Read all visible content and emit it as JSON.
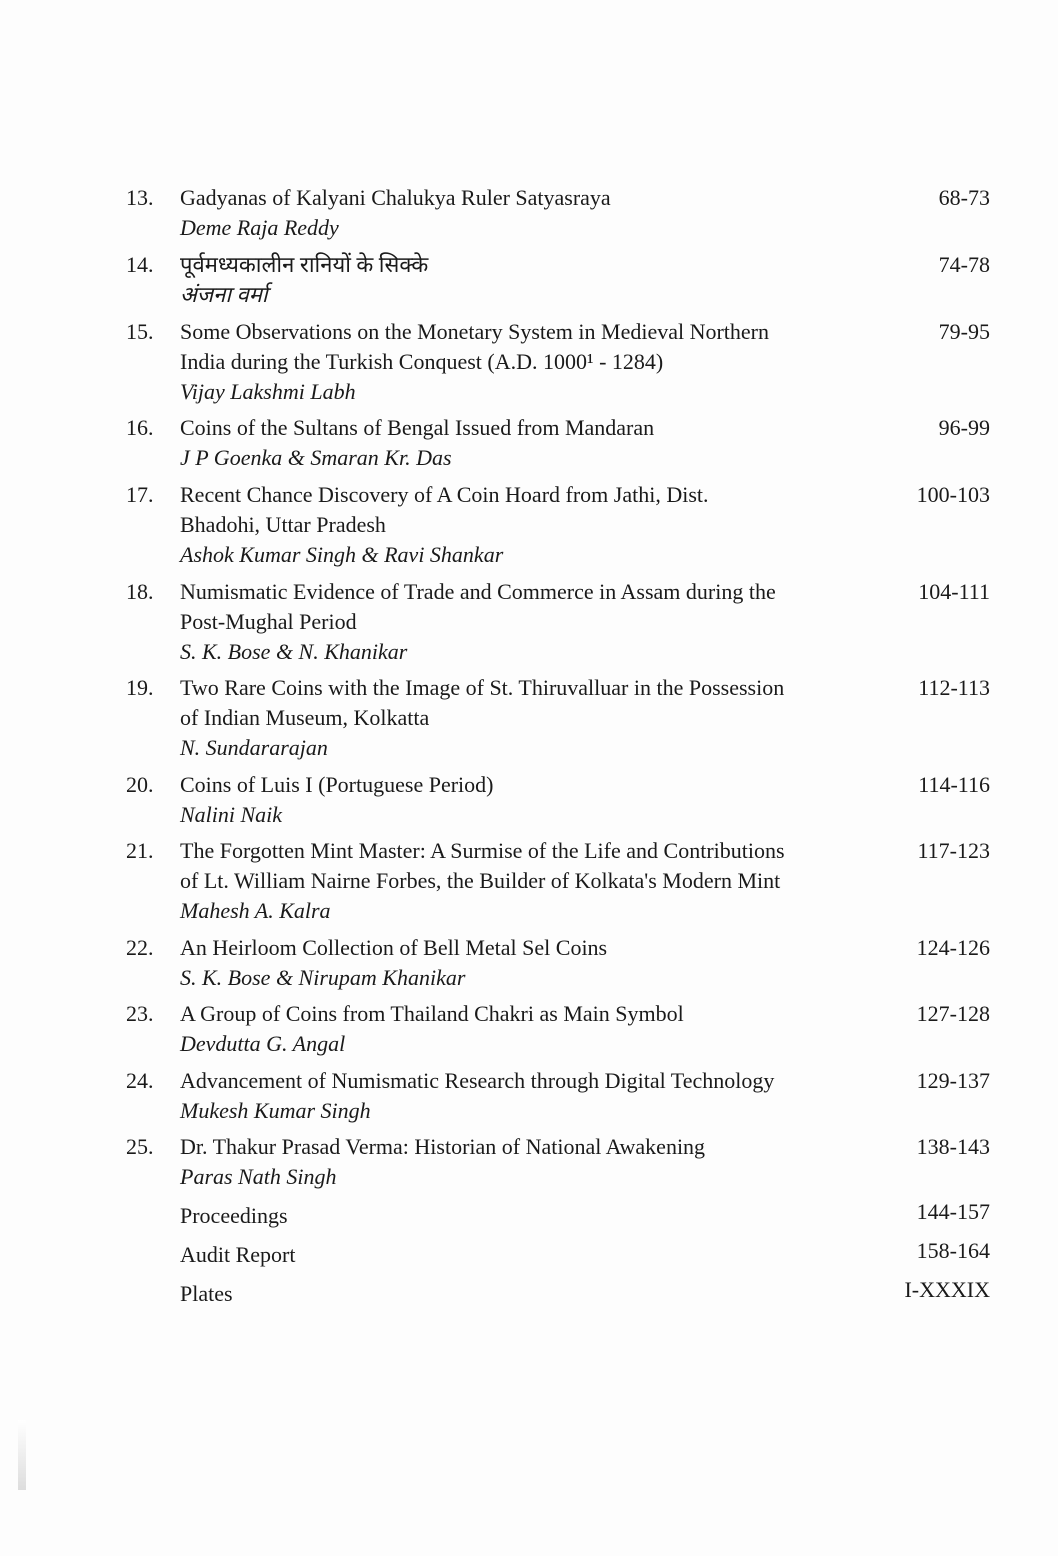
{
  "entries": [
    {
      "number": "13.",
      "title_lines": [
        "Gadyanas of Kalyani Chalukya Ruler Satyasraya"
      ],
      "author": "Deme Raja Reddy",
      "pages": "68-73"
    },
    {
      "number": "14.",
      "title_lines": [
        "पूर्वमध्यकालीन रानियों के सिक्के"
      ],
      "author": "अंजना वर्मा",
      "pages": "74-78"
    },
    {
      "number": "15.",
      "title_lines": [
        "Some Observations on the Monetary System in Medieval Northern",
        "India during the Turkish Conquest (A.D. 1000¹ - 1284)"
      ],
      "author": "Vijay Lakshmi Labh",
      "pages": "79-95"
    },
    {
      "number": "16.",
      "title_lines": [
        "Coins of the Sultans of Bengal Issued from Mandaran"
      ],
      "author": "J P Goenka & Smaran Kr. Das",
      "pages": "96-99"
    },
    {
      "number": "17.",
      "title_lines": [
        "Recent Chance Discovery of A Coin Hoard from Jathi, Dist.",
        "Bhadohi, Uttar Pradesh"
      ],
      "author": "Ashok Kumar Singh & Ravi Shankar",
      "pages": "100-103"
    },
    {
      "number": "18.",
      "title_lines": [
        "Numismatic Evidence of Trade and Commerce in Assam during the",
        "Post-Mughal Period"
      ],
      "author": "S. K. Bose & N. Khanikar",
      "pages": "104-111"
    },
    {
      "number": "19.",
      "title_lines": [
        "Two Rare Coins with the Image of St. Thiruvalluar in the Possession",
        "of Indian Museum, Kolkatta"
      ],
      "author": "N. Sundararajan",
      "pages": "112-113"
    },
    {
      "number": "20.",
      "title_lines": [
        "Coins of Luis I (Portuguese Period)"
      ],
      "author": "Nalini Naik",
      "pages": "114-116"
    },
    {
      "number": "21.",
      "title_lines": [
        "The Forgotten Mint Master: A Surmise of the Life and Contributions",
        "of Lt. William Nairne Forbes, the Builder of Kolkata's Modern Mint"
      ],
      "author": "Mahesh A. Kalra",
      "pages": "117-123"
    },
    {
      "number": "22.",
      "title_lines": [
        "An Heirloom Collection of Bell Metal Sel Coins"
      ],
      "author": "S. K. Bose & Nirupam Khanikar",
      "pages": "124-126"
    },
    {
      "number": "23.",
      "title_lines": [
        "A Group of Coins from Thailand Chakri as Main Symbol"
      ],
      "author": "Devdutta G. Angal",
      "pages": "127-128"
    },
    {
      "number": "24.",
      "title_lines": [
        "Advancement of Numismatic Research through Digital Technology"
      ],
      "author": "Mukesh Kumar Singh",
      "pages": "129-137"
    },
    {
      "number": "25.",
      "title_lines": [
        "Dr. Thakur Prasad Verma: Historian of National Awakening"
      ],
      "author": "Paras Nath Singh",
      "pages": "138-143"
    },
    {
      "number": "",
      "title_lines": [
        "Proceedings"
      ],
      "author": "",
      "pages": "144-157"
    },
    {
      "number": "",
      "title_lines": [
        "Audit Report"
      ],
      "author": "",
      "pages": "158-164"
    },
    {
      "number": "",
      "title_lines": [
        "Plates"
      ],
      "author": "",
      "pages": "I-XXXIX"
    }
  ]
}
